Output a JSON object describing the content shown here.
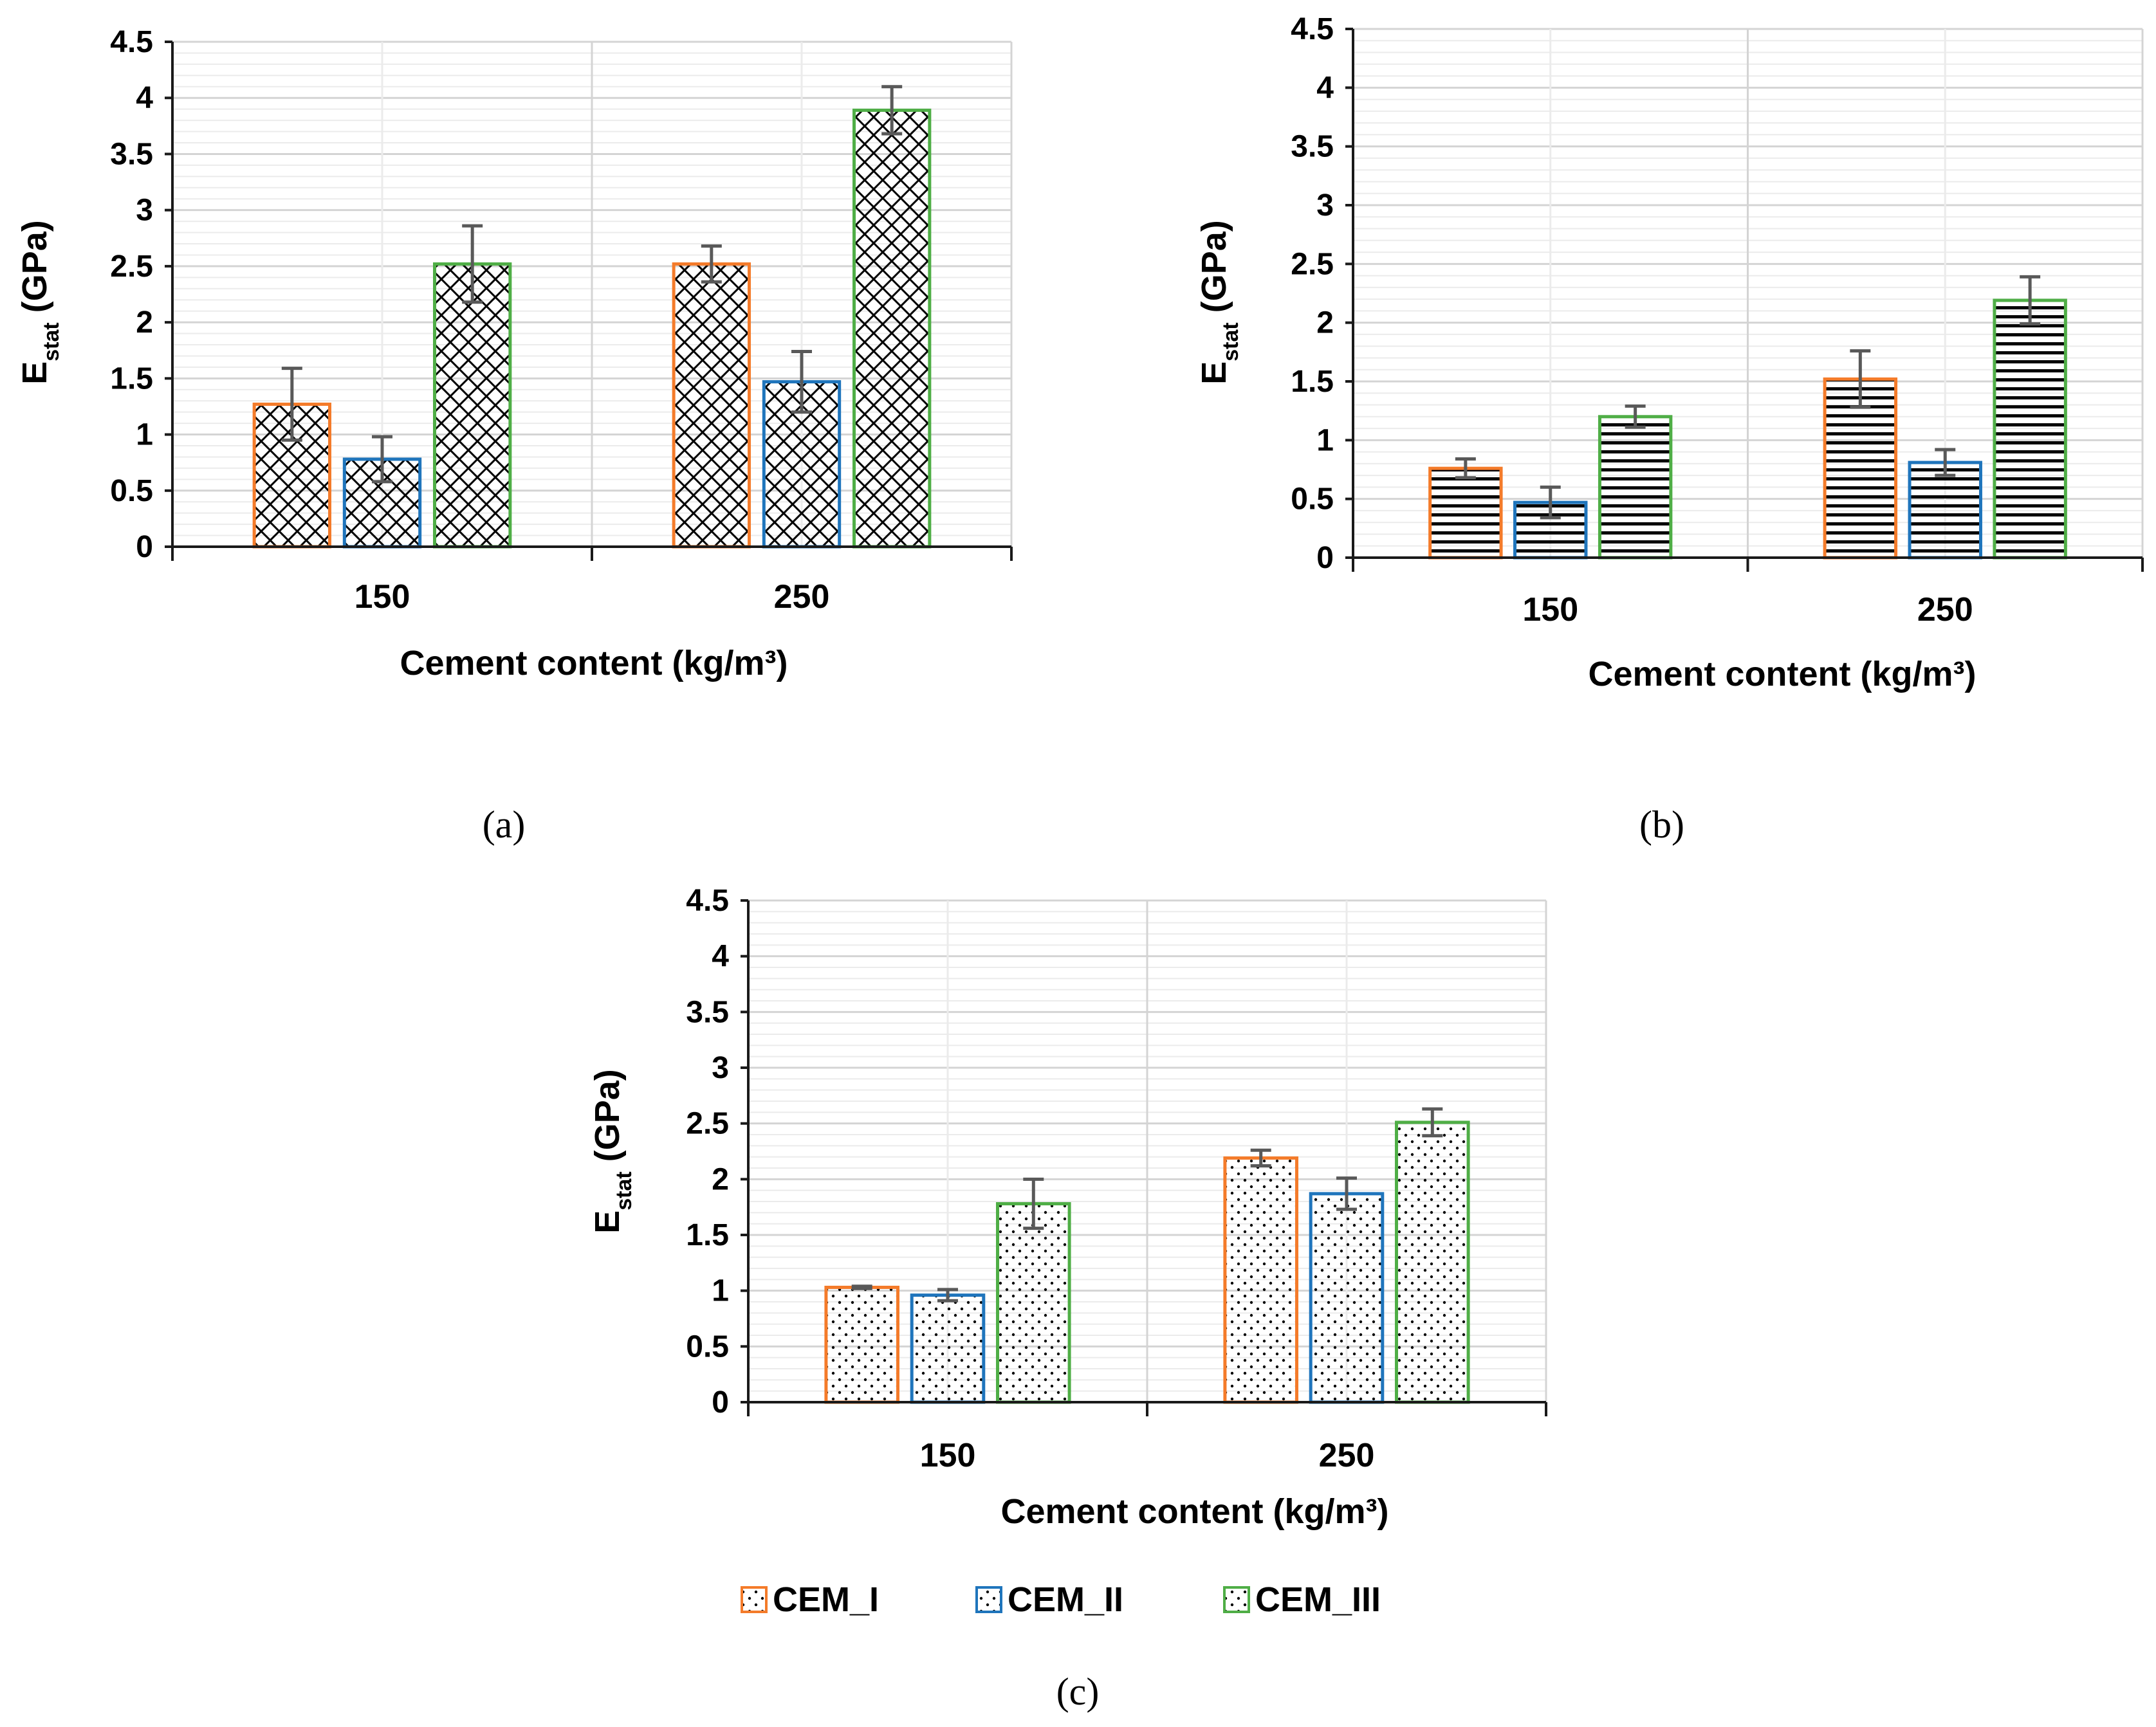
{
  "chart_data": [
    {
      "panel": "a",
      "caption": "(a)",
      "type": "bar",
      "pattern": "crosshatch",
      "categories": [
        "150",
        "250"
      ],
      "series": [
        {
          "name": "CEM_I",
          "values": [
            1.27,
            2.52
          ],
          "errors": [
            0.32,
            0.16
          ]
        },
        {
          "name": "CEM_II",
          "values": [
            0.78,
            1.47
          ],
          "errors": [
            0.2,
            0.27
          ]
        },
        {
          "name": "CEM_III",
          "values": [
            2.52,
            3.89
          ],
          "errors": [
            0.34,
            0.21
          ]
        }
      ],
      "xlabel": "Cement content (kg/m³)",
      "ylabel_main": "E",
      "ylabel_sub": "stat",
      "ylabel_unit": " (GPa)",
      "ylim": [
        0,
        4.5
      ],
      "yticks": [
        "0",
        "0.5",
        "1",
        "1.5",
        "2",
        "2.5",
        "3",
        "3.5",
        "4",
        "4.5"
      ],
      "grid": true
    },
    {
      "panel": "b",
      "caption": "(b)",
      "type": "bar",
      "pattern": "horizontal",
      "categories": [
        "150",
        "250"
      ],
      "series": [
        {
          "name": "CEM_I",
          "values": [
            0.76,
            1.52
          ],
          "errors": [
            0.08,
            0.24
          ]
        },
        {
          "name": "CEM_II",
          "values": [
            0.47,
            0.81
          ],
          "errors": [
            0.13,
            0.11
          ]
        },
        {
          "name": "CEM_III",
          "values": [
            1.2,
            2.19
          ],
          "errors": [
            0.09,
            0.2
          ]
        }
      ],
      "xlabel": "Cement content (kg/m³)",
      "ylabel_main": "E",
      "ylabel_sub": "stat",
      "ylabel_unit": " (GPa)",
      "ylim": [
        0,
        4.5
      ],
      "yticks": [
        "0",
        "0.5",
        "1",
        "1.5",
        "2",
        "2.5",
        "3",
        "3.5",
        "4",
        "4.5"
      ],
      "grid": true
    },
    {
      "panel": "c",
      "caption": "(c)",
      "type": "bar",
      "pattern": "dots",
      "categories": [
        "150",
        "250"
      ],
      "series": [
        {
          "name": "CEM_I",
          "values": [
            1.03,
            2.19
          ],
          "errors": [
            0.01,
            0.07
          ]
        },
        {
          "name": "CEM_II",
          "values": [
            0.96,
            1.87
          ],
          "errors": [
            0.05,
            0.14
          ]
        },
        {
          "name": "CEM_III",
          "values": [
            1.78,
            2.51
          ],
          "errors": [
            0.22,
            0.12
          ]
        }
      ],
      "xlabel": "Cement content (kg/m³)",
      "ylabel_main": "E",
      "ylabel_sub": "stat",
      "ylabel_unit": " (GPa)",
      "ylim": [
        0,
        4.5
      ],
      "yticks": [
        "0",
        "0.5",
        "1",
        "1.5",
        "2",
        "2.5",
        "3",
        "3.5",
        "4",
        "4.5"
      ],
      "grid": true
    }
  ],
  "legend": {
    "position": "bottom",
    "items": [
      {
        "label": "CEM_I",
        "color": "#F47B2A"
      },
      {
        "label": "CEM_II",
        "color": "#1F75BC"
      },
      {
        "label": "CEM_III",
        "color": "#4FAE46"
      }
    ]
  },
  "colors": {
    "CEM_I": "#F47B2A",
    "CEM_II": "#1F75BC",
    "CEM_III": "#4FAE46",
    "errorbar": "#595959",
    "gridline": "#D9D9D9"
  }
}
